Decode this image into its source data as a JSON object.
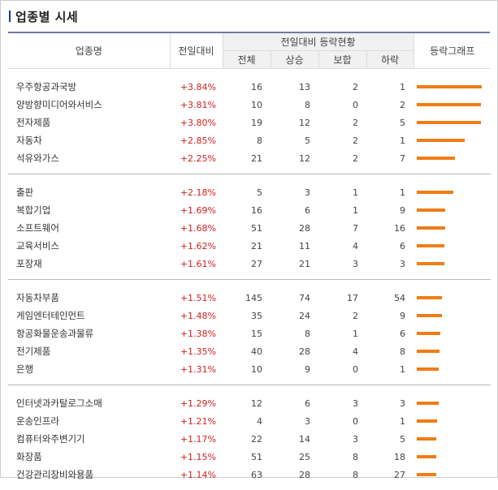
{
  "title": "업종별 시세",
  "headers": {
    "name": "업종명",
    "change": "전일대비",
    "group": "전일대비 등락현황",
    "total": "전체",
    "up": "상승",
    "flat": "보합",
    "down": "하락",
    "graph": "등락그래프"
  },
  "colors": {
    "up_text": "#d2201f",
    "bar": "#ef7d14",
    "title_accent": "#1e3a8a"
  },
  "groups": [
    {
      "rows": [
        {
          "name": "우주항공과국방",
          "change": "+3.84%",
          "total": "16",
          "up": "13",
          "flat": "2",
          "down": "1",
          "bar": 0.0384
        },
        {
          "name": "양방향미디어와서비스",
          "change": "+3.81%",
          "total": "10",
          "up": "8",
          "flat": "0",
          "down": "2",
          "bar": 0.0381
        },
        {
          "name": "전자제품",
          "change": "+3.80%",
          "total": "19",
          "up": "12",
          "flat": "2",
          "down": "5",
          "bar": 0.038
        },
        {
          "name": "자동차",
          "change": "+2.85%",
          "total": "8",
          "up": "5",
          "flat": "2",
          "down": "1",
          "bar": 0.0285
        },
        {
          "name": "석유와가스",
          "change": "+2.25%",
          "total": "21",
          "up": "12",
          "flat": "2",
          "down": "7",
          "bar": 0.0225
        }
      ]
    },
    {
      "rows": [
        {
          "name": "출판",
          "change": "+2.18%",
          "total": "5",
          "up": "3",
          "flat": "1",
          "down": "1",
          "bar": 0.0218
        },
        {
          "name": "복합기업",
          "change": "+1.69%",
          "total": "16",
          "up": "6",
          "flat": "1",
          "down": "9",
          "bar": 0.0169
        },
        {
          "name": "소프트웨어",
          "change": "+1.68%",
          "total": "51",
          "up": "28",
          "flat": "7",
          "down": "16",
          "bar": 0.0168
        },
        {
          "name": "교육서비스",
          "change": "+1.62%",
          "total": "21",
          "up": "11",
          "flat": "4",
          "down": "6",
          "bar": 0.0162
        },
        {
          "name": "포장재",
          "change": "+1.61%",
          "total": "27",
          "up": "21",
          "flat": "3",
          "down": "3",
          "bar": 0.0161
        }
      ]
    },
    {
      "rows": [
        {
          "name": "자동차부품",
          "change": "+1.51%",
          "total": "145",
          "up": "74",
          "flat": "17",
          "down": "54",
          "bar": 0.0151
        },
        {
          "name": "게임엔터테인먼트",
          "change": "+1.48%",
          "total": "35",
          "up": "24",
          "flat": "2",
          "down": "9",
          "bar": 0.0148
        },
        {
          "name": "항공화물운송과물류",
          "change": "+1.38%",
          "total": "15",
          "up": "8",
          "flat": "1",
          "down": "6",
          "bar": 0.0138
        },
        {
          "name": "전기제품",
          "change": "+1.35%",
          "total": "40",
          "up": "28",
          "flat": "4",
          "down": "8",
          "bar": 0.0135
        },
        {
          "name": "은행",
          "change": "+1.31%",
          "total": "10",
          "up": "9",
          "flat": "0",
          "down": "1",
          "bar": 0.0131
        }
      ]
    },
    {
      "rows": [
        {
          "name": "인터넷과카탈로그소매",
          "change": "+1.29%",
          "total": "12",
          "up": "6",
          "flat": "3",
          "down": "3",
          "bar": 0.0129
        },
        {
          "name": "운송인프라",
          "change": "+1.21%",
          "total": "4",
          "up": "3",
          "flat": "0",
          "down": "1",
          "bar": 0.0121
        },
        {
          "name": "컴퓨터와주변기기",
          "change": "+1.17%",
          "total": "22",
          "up": "14",
          "flat": "3",
          "down": "5",
          "bar": 0.0117
        },
        {
          "name": "화장품",
          "change": "+1.15%",
          "total": "51",
          "up": "25",
          "flat": "8",
          "down": "18",
          "bar": 0.0115
        },
        {
          "name": "건강관리장비와용품",
          "change": "+1.14%",
          "total": "63",
          "up": "28",
          "flat": "8",
          "down": "27",
          "bar": 0.0114
        }
      ]
    }
  ]
}
